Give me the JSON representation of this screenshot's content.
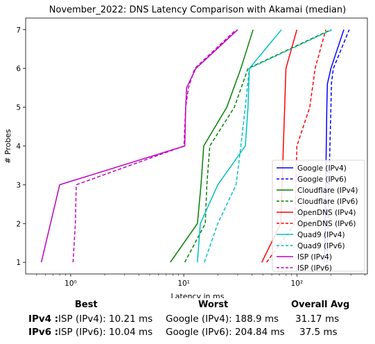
{
  "chart_data": {
    "type": "line",
    "title": "November_2022: DNS Latency Comparison with Akamai (median)",
    "xlabel": "Latency in ms",
    "ylabel": "# Probes",
    "xscale": "log",
    "xlim": [
      0.4,
      420
    ],
    "ylim": [
      0.7,
      7.3
    ],
    "xticks": [
      {
        "value": 1,
        "label": "10⁰"
      },
      {
        "value": 10,
        "label": "10¹"
      },
      {
        "value": 100,
        "label": "10²"
      }
    ],
    "yticks": [
      1,
      2,
      3,
      4,
      5,
      6,
      7
    ],
    "legend_position": "lower-right",
    "series": [
      {
        "name": "Google (IPv4)",
        "color": "#0000ff",
        "dash": "solid",
        "x": [
          175,
          178,
          180,
          182,
          184,
          186,
          200,
          260
        ],
        "y": [
          1,
          2,
          3,
          4,
          5,
          5.6,
          6,
          7
        ]
      },
      {
        "name": "Google (IPv6)",
        "color": "#0000ff",
        "dash": "dashed",
        "x": [
          185,
          188,
          192,
          196,
          200,
          202,
          210,
          290
        ],
        "y": [
          1,
          2,
          3,
          4,
          5,
          5.6,
          6,
          7
        ]
      },
      {
        "name": "Cloudflare (IPv4)",
        "color": "#008000",
        "dash": "solid",
        "x": [
          7.6,
          13.2,
          14.2,
          15,
          24,
          32,
          41
        ],
        "y": [
          1,
          2,
          3,
          4,
          5,
          6,
          7
        ]
      },
      {
        "name": "Cloudflare (IPv6)",
        "color": "#008000",
        "dash": "dashed",
        "x": [
          10.2,
          15.5,
          16,
          17,
          28,
          37,
          200
        ],
        "y": [
          1,
          2,
          3,
          4,
          5,
          6,
          7
        ]
      },
      {
        "name": "OpenDNS (IPv4)",
        "color": "#ff0000",
        "dash": "solid",
        "x": [
          49,
          72,
          74,
          76,
          78,
          80,
          100
        ],
        "y": [
          1,
          2,
          3,
          4,
          5,
          6,
          7
        ]
      },
      {
        "name": "OpenDNS (IPv6)",
        "color": "#ff0000",
        "dash": "dashed",
        "x": [
          54,
          96,
          98,
          100,
          130,
          145,
          180
        ],
        "y": [
          1,
          2,
          3,
          4,
          5,
          6,
          7
        ]
      },
      {
        "name": "Quad9 (IPv4)",
        "color": "#00bfbf",
        "dash": "solid",
        "x": [
          13.2,
          14,
          20,
          35,
          37,
          38,
          73
        ],
        "y": [
          1,
          2,
          3,
          4,
          5,
          6,
          7
        ]
      },
      {
        "name": "Quad9 (IPv6)",
        "color": "#00bfbf",
        "dash": "dashed",
        "x": [
          15.2,
          20,
          29,
          32,
          35,
          38,
          205
        ],
        "y": [
          1,
          2,
          3,
          4,
          5,
          6,
          7
        ]
      },
      {
        "name": "ISP (IPv4)",
        "color": "#bf00bf",
        "dash": "solid",
        "x": [
          0.55,
          0.8,
          10.21,
          10.4,
          10.6,
          12.8,
          30
        ],
        "y": [
          1,
          3,
          4,
          5,
          5.5,
          6,
          7
        ]
      },
      {
        "name": "ISP (IPv6)",
        "color": "#bf00bf",
        "dash": "dashed",
        "x": [
          1.05,
          1.1,
          1.12,
          10.04,
          10.4,
          11,
          12.5,
          29
        ],
        "y": [
          1,
          2,
          3,
          4,
          5,
          5.5,
          6,
          7
        ]
      }
    ]
  },
  "summary": {
    "headers": {
      "best": "Best",
      "worst": "Worst",
      "avg": "Overall Avg"
    },
    "rows": [
      {
        "label": "IPv4 :",
        "best": "ISP (IPv4): 10.21 ms",
        "worst": "Google (IPv4): 188.9 ms",
        "avg": "31.17 ms"
      },
      {
        "label": "IPv6 :",
        "best": "ISP (IPv6): 10.04 ms",
        "worst": "Google (IPv6): 204.84 ms",
        "avg": "37.5 ms"
      }
    ]
  }
}
